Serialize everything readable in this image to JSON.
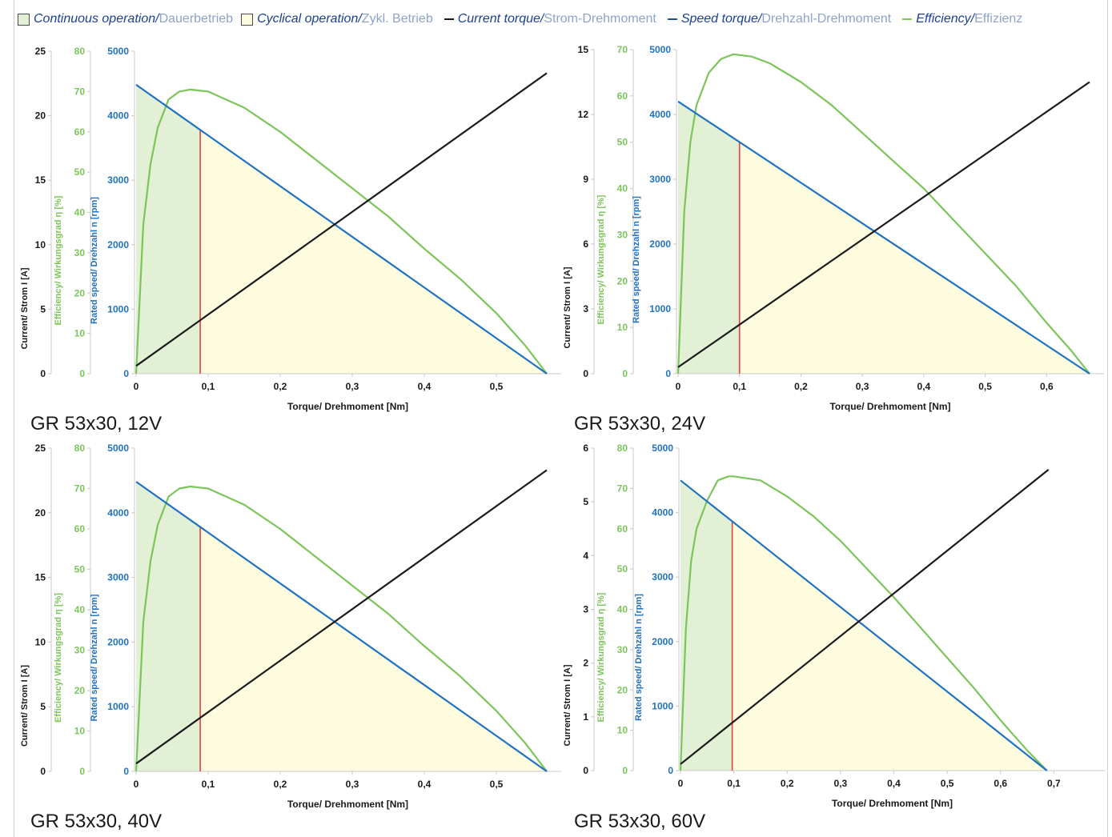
{
  "legend": {
    "items": [
      {
        "kind": "box",
        "color": "#e3f0d5",
        "en": "Continuous operation/",
        "de": "Dauerbetrieb"
      },
      {
        "kind": "box",
        "color": "#fefde0",
        "en": "Cyclical operation/",
        "de": "Zykl. Betrieb"
      },
      {
        "kind": "line",
        "color": "#1a1a1a",
        "en": "Current torque/",
        "de": "Strom-Drehmoment"
      },
      {
        "kind": "line",
        "color": "#1f4fa8",
        "en": "Speed torque/",
        "de": "Drehzahl-Drehmoment"
      },
      {
        "kind": "line",
        "color": "#7cc55a",
        "en": "Efficiency/",
        "de": "Effizienz"
      }
    ]
  },
  "colors": {
    "current": "#1a1a1a",
    "speed": "#2072c2",
    "efficiency": "#7cc55a",
    "continuous_fill": "#e2f0d5",
    "cyclical_fill": "#fdfcdf",
    "rated_line": "#e8413c",
    "current_axis_text": "#1a1a1a",
    "efficiency_axis_text": "#7cc55a",
    "speed_axis_text": "#2072c2",
    "axis_line": "#c8c8c8"
  },
  "axis_labels": {
    "current": "Current/ Strom I [A]",
    "efficiency": "Efficiency/ Wirkungsgrad η [%]",
    "speed": "Rated speed/ Drehzahl n [rpm]",
    "torque": "Torque/ Drehmoment [Nm]"
  },
  "chart_data": [
    {
      "type": "line",
      "caption": "GR 53x30, 12V",
      "x_ticks": [
        "0",
        "0,1",
        "0,2",
        "0,3",
        "0,4",
        "0,5"
      ],
      "x_tick_values": [
        0,
        0.1,
        0.2,
        0.3,
        0.4,
        0.5
      ],
      "xlim": [
        0,
        0.57
      ],
      "current_ticks": [
        "0",
        "5",
        "10",
        "15",
        "20",
        "25"
      ],
      "current_lim": [
        0,
        25
      ],
      "efficiency_ticks": [
        "0",
        "10",
        "20",
        "30",
        "40",
        "50",
        "60",
        "70",
        "80"
      ],
      "efficiency_lim": [
        0,
        80
      ],
      "speed_ticks": [
        "0",
        "1000",
        "2000",
        "3000",
        "4000",
        "5000"
      ],
      "speed_lim": [
        0,
        5000
      ],
      "rated_torque": 0.089,
      "stall_torque": 0.57,
      "speed_curve": {
        "x": [
          0,
          0.57
        ],
        "y": [
          4480,
          0
        ]
      },
      "current_curve": {
        "x": [
          0,
          0.57
        ],
        "y": [
          0.6,
          23.3
        ]
      },
      "efficiency_curve": {
        "x": [
          0,
          0.01,
          0.02,
          0.03,
          0.045,
          0.06,
          0.075,
          0.1,
          0.15,
          0.2,
          0.25,
          0.3,
          0.35,
          0.4,
          0.45,
          0.5,
          0.54,
          0.57
        ],
        "y": [
          0,
          37,
          52,
          61,
          68,
          70,
          70.5,
          70,
          66,
          60,
          53,
          46,
          39,
          31,
          23.5,
          15,
          7,
          0
        ]
      }
    },
    {
      "type": "line",
      "caption": "GR 53x30, 24V",
      "x_ticks": [
        "0",
        "0,1",
        "0,2",
        "0,3",
        "0,4",
        "0,5",
        "0,6"
      ],
      "x_tick_values": [
        0,
        0.1,
        0.2,
        0.3,
        0.4,
        0.5,
        0.6
      ],
      "xlim": [
        0,
        0.67
      ],
      "current_ticks": [
        "0",
        "3",
        "6",
        "9",
        "12",
        "15"
      ],
      "current_lim": [
        0,
        15
      ],
      "efficiency_ticks": [
        "0",
        "10",
        "20",
        "30",
        "40",
        "50",
        "60",
        "70"
      ],
      "efficiency_lim": [
        0,
        70
      ],
      "speed_ticks": [
        "0",
        "1000",
        "2000",
        "3000",
        "4000",
        "5000"
      ],
      "speed_lim": [
        0,
        5000
      ],
      "rated_torque": 0.1,
      "stall_torque": 0.67,
      "speed_curve": {
        "x": [
          0,
          0.67
        ],
        "y": [
          4200,
          0
        ]
      },
      "current_curve": {
        "x": [
          0,
          0.67
        ],
        "y": [
          0.3,
          13.5
        ]
      },
      "efficiency_curve": {
        "x": [
          0,
          0.01,
          0.02,
          0.03,
          0.05,
          0.07,
          0.09,
          0.12,
          0.15,
          0.2,
          0.25,
          0.3,
          0.35,
          0.4,
          0.45,
          0.5,
          0.55,
          0.6,
          0.64,
          0.67
        ],
        "y": [
          0,
          35,
          50,
          58,
          65,
          68,
          69,
          68.5,
          67,
          63,
          58,
          52,
          46,
          40,
          33,
          26,
          19,
          11,
          5,
          0
        ]
      }
    },
    {
      "type": "line",
      "caption": "GR 53x30, 40V",
      "x_ticks": [
        "0",
        "0,1",
        "0,2",
        "0,3",
        "0,4",
        "0,5"
      ],
      "x_tick_values": [
        0,
        0.1,
        0.2,
        0.3,
        0.4,
        0.5
      ],
      "xlim": [
        0,
        0.57
      ],
      "current_ticks": [
        "0",
        "5",
        "10",
        "15",
        "20",
        "25"
      ],
      "current_lim": [
        0,
        25
      ],
      "efficiency_ticks": [
        "0",
        "10",
        "20",
        "30",
        "40",
        "50",
        "60",
        "70",
        "80"
      ],
      "efficiency_lim": [
        0,
        80
      ],
      "speed_ticks": [
        "0",
        "1000",
        "2000",
        "3000",
        "4000",
        "5000"
      ],
      "speed_lim": [
        0,
        5000
      ],
      "rated_torque": 0.089,
      "stall_torque": 0.57,
      "speed_curve": {
        "x": [
          0,
          0.57
        ],
        "y": [
          4480,
          0
        ]
      },
      "current_curve": {
        "x": [
          0,
          0.57
        ],
        "y": [
          0.6,
          23.3
        ]
      },
      "efficiency_curve": {
        "x": [
          0,
          0.01,
          0.02,
          0.03,
          0.045,
          0.06,
          0.075,
          0.1,
          0.15,
          0.2,
          0.25,
          0.3,
          0.35,
          0.4,
          0.45,
          0.5,
          0.54,
          0.57
        ],
        "y": [
          0,
          37,
          52,
          61,
          68,
          70,
          70.5,
          70,
          66,
          60,
          53,
          46,
          39,
          31,
          23.5,
          15,
          7,
          0
        ]
      }
    },
    {
      "type": "line",
      "caption": "GR 53x30, 60V",
      "x_ticks": [
        "0",
        "0,1",
        "0,2",
        "0,3",
        "0,4",
        "0,5",
        "0,6",
        "0,7"
      ],
      "x_tick_values": [
        0,
        0.1,
        0.2,
        0.3,
        0.4,
        0.5,
        0.6,
        0.7
      ],
      "xlim": [
        0,
        0.77
      ],
      "current_ticks": [
        "0",
        "1",
        "2",
        "3",
        "4",
        "5",
        "6"
      ],
      "current_lim": [
        0,
        6
      ],
      "efficiency_ticks": [
        "0",
        "10",
        "20",
        "30",
        "40",
        "50",
        "60",
        "70",
        "80"
      ],
      "efficiency_lim": [
        0,
        80
      ],
      "speed_ticks": [
        "0",
        "1000",
        "2000",
        "3000",
        "4000",
        "5000"
      ],
      "speed_lim": [
        0,
        5000
      ],
      "rated_torque": 0.097,
      "stall_torque": 0.687,
      "speed_curve": {
        "x": [
          0,
          0.687
        ],
        "y": [
          4500,
          0
        ]
      },
      "current_curve": {
        "x": [
          0,
          0.69
        ],
        "y": [
          0.12,
          5.6
        ]
      },
      "efficiency_curve": {
        "x": [
          0,
          0.01,
          0.02,
          0.03,
          0.05,
          0.07,
          0.09,
          0.1,
          0.15,
          0.2,
          0.25,
          0.3,
          0.35,
          0.4,
          0.45,
          0.5,
          0.55,
          0.6,
          0.65,
          0.687
        ],
        "y": [
          0,
          35,
          52,
          60,
          67,
          72,
          73,
          73,
          72,
          68,
          63,
          57,
          50,
          43,
          35.5,
          28,
          20.5,
          12.5,
          5,
          0
        ]
      }
    }
  ]
}
